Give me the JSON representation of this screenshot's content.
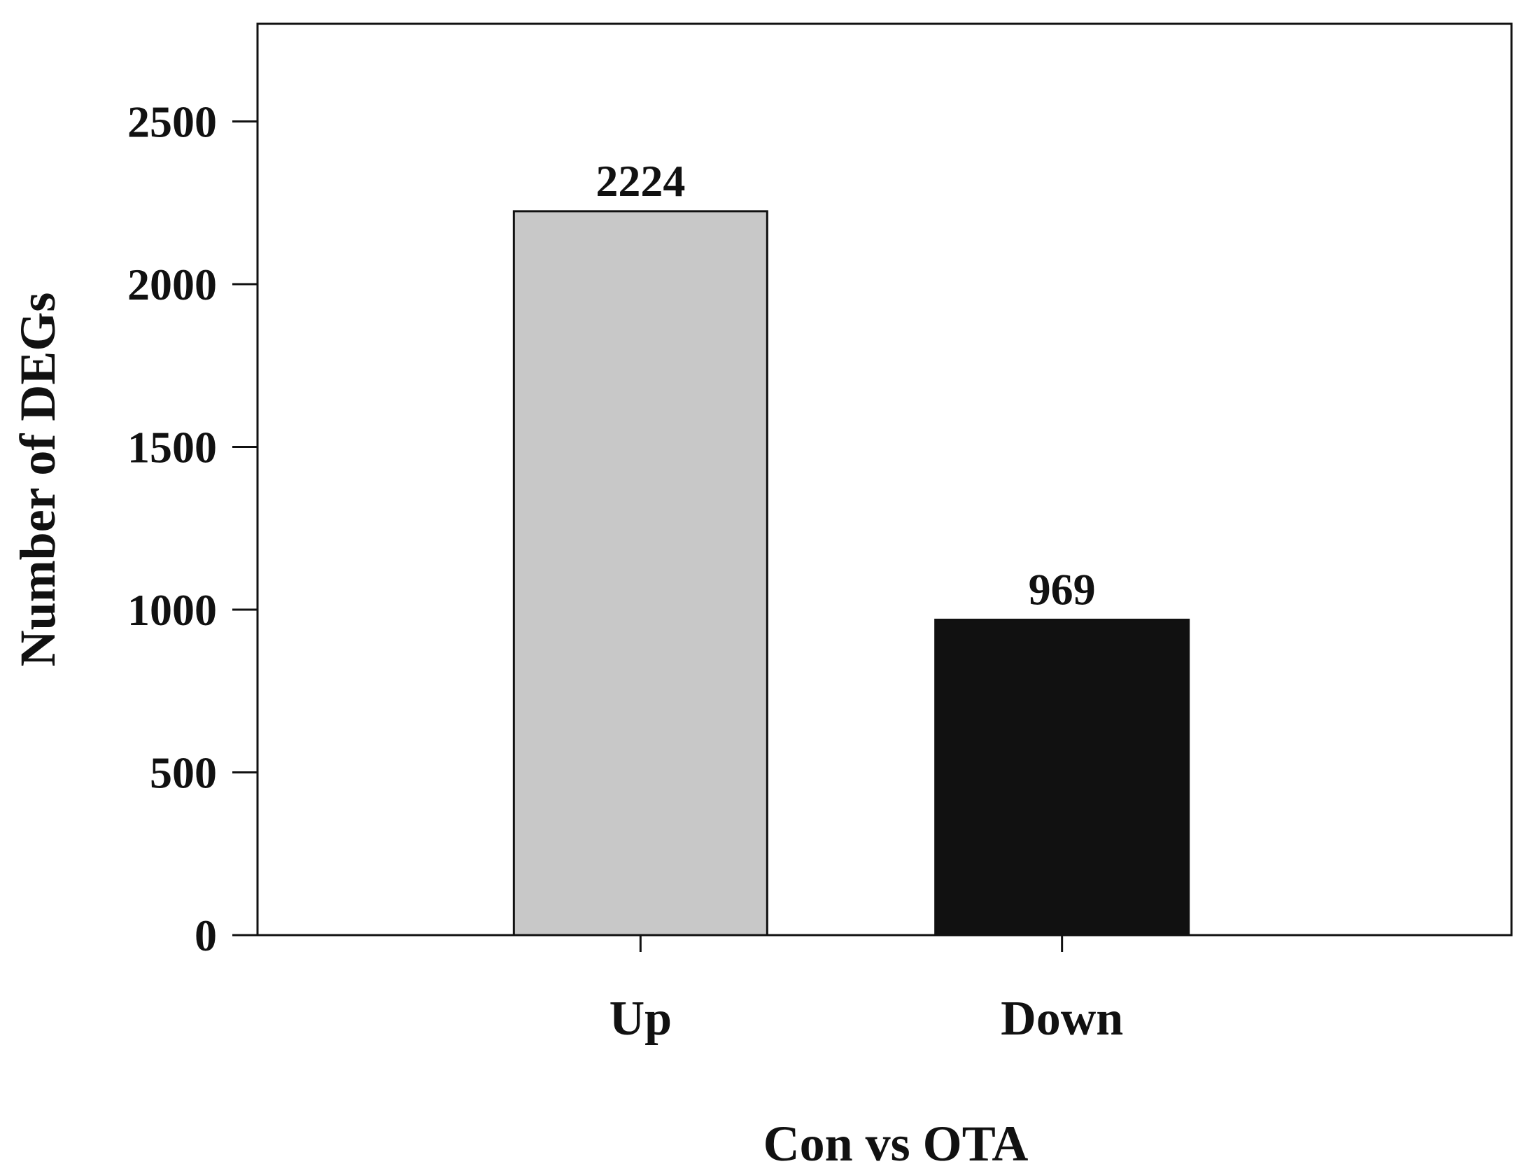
{
  "chart_data": {
    "type": "bar",
    "categories": [
      "Up",
      "Down"
    ],
    "values": [
      2224,
      969
    ],
    "data_labels": [
      "2224",
      "969"
    ],
    "bar_colors": [
      "#c8c8c8",
      "#111111"
    ],
    "xlabel": "Con vs OTA",
    "ylabel": "Number of DEGs",
    "ylim": [
      0,
      2800
    ],
    "yticks": [
      0,
      500,
      1000,
      1500,
      2000,
      2500
    ],
    "grid": false,
    "legend": "none"
  }
}
